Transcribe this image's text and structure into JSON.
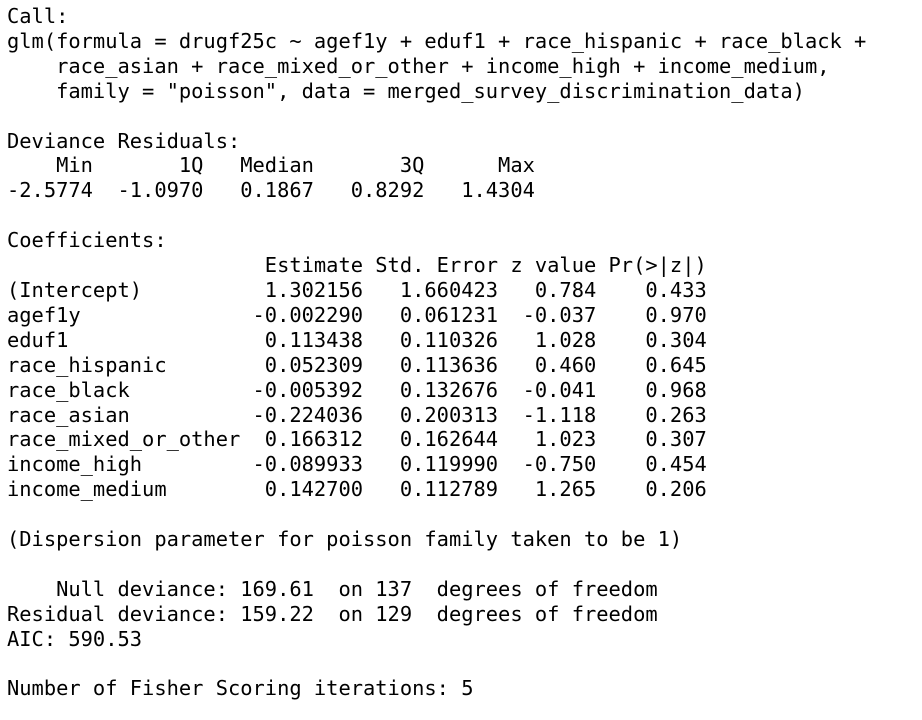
{
  "output": {
    "call_header": "Call:",
    "call_lines": [
      "glm(formula = drugf25c ~ agef1y + eduf1 + race_hispanic + race_black +",
      "    race_asian + race_mixed_or_other + income_high + income_medium,",
      "    family = \"poisson\", data = merged_survey_discrimination_data)"
    ],
    "deviance_residuals": {
      "title": "Deviance Residuals:",
      "header": "    Min       1Q   Median       3Q      Max  ",
      "values": "-2.5774  -1.0970   0.1867   0.8292   1.4304  "
    },
    "coefficients": {
      "title": "Coefficients:",
      "header": "                     Estimate Std. Error z value Pr(>|z|)",
      "rows": [
        "(Intercept)          1.302156   1.660423   0.784    0.433",
        "agef1y              -0.002290   0.061231  -0.037    0.970",
        "eduf1                0.113438   0.110326   1.028    0.304",
        "race_hispanic        0.052309   0.113636   0.460    0.645",
        "race_black          -0.005392   0.132676  -0.041    0.968",
        "race_asian          -0.224036   0.200313  -1.118    0.263",
        "race_mixed_or_other  0.166312   0.162644   1.023    0.307",
        "income_high         -0.089933   0.119990  -0.750    0.454",
        "income_medium        0.142700   0.112789   1.265    0.206"
      ]
    },
    "dispersion": "(Dispersion parameter for poisson family taken to be 1)",
    "null_deviance": "    Null deviance: 169.61  on 137  degrees of freedom",
    "residual_deviance": "Residual deviance: 159.22  on 129  degrees of freedom",
    "aic": "AIC: 590.53",
    "fisher": "Number of Fisher Scoring iterations: 5"
  }
}
